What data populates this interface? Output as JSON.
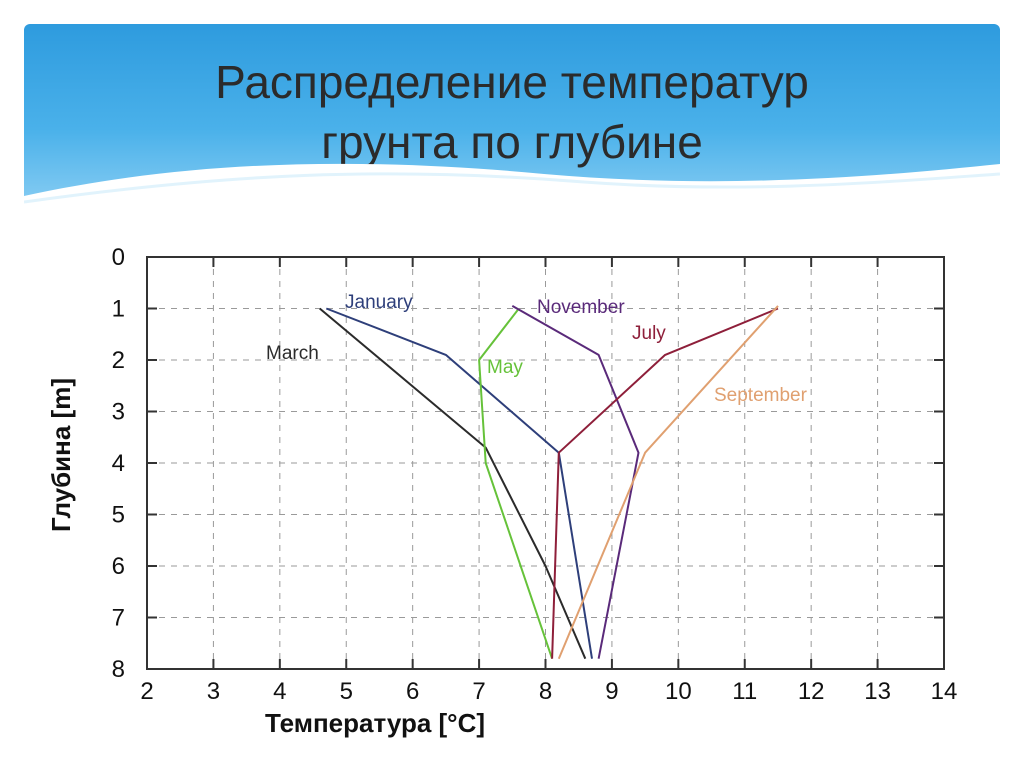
{
  "slide": {
    "title_line1": "Распределение температур",
    "title_line2": "грунта по глубине"
  },
  "colors": {
    "header_top": "#2e9bde",
    "header_bottom": "#8fd0f4",
    "title_text": "#2b2b2b"
  },
  "chart_data": {
    "type": "line",
    "xlabel": "Температура [°C]",
    "ylabel": "Глубина [m]",
    "xlim": [
      2,
      14
    ],
    "ylim": [
      0,
      8
    ],
    "y_inverted": true,
    "x_ticks": [
      "2",
      "3",
      "4",
      "5",
      "6",
      "7",
      "8",
      "9",
      "10",
      "11",
      "12",
      "13",
      "14"
    ],
    "y_ticks": [
      "0",
      "1",
      "2",
      "3",
      "4",
      "5",
      "6",
      "7",
      "8"
    ],
    "grid": "dashed",
    "series": [
      {
        "name": "January",
        "color": "#2e3f7a",
        "x": [
          4.7,
          6.5,
          8.2,
          8.7
        ],
        "y": [
          1,
          1.9,
          3.8,
          7.8
        ]
      },
      {
        "name": "March",
        "color": "#2b2b2b",
        "x": [
          4.6,
          7.1,
          8.0,
          8.6
        ],
        "y": [
          1,
          3.7,
          6.0,
          7.8
        ]
      },
      {
        "name": "May",
        "color": "#66c23a",
        "x": [
          7.6,
          7.0,
          7.1,
          8.1
        ],
        "y": [
          1,
          2.0,
          4.0,
          7.8
        ]
      },
      {
        "name": "November",
        "color": "#5a2a7a",
        "x": [
          7.5,
          8.8,
          9.4,
          8.8
        ],
        "y": [
          0.95,
          1.9,
          3.8,
          7.8
        ]
      },
      {
        "name": "July",
        "color": "#8e1f3a",
        "x": [
          11.5,
          9.8,
          8.2,
          8.1
        ],
        "y": [
          1,
          1.9,
          3.8,
          7.8
        ]
      },
      {
        "name": "September",
        "color": "#e0a070",
        "x": [
          11.5,
          9.5,
          8.2
        ],
        "y": [
          0.95,
          3.8,
          7.8
        ]
      }
    ]
  }
}
